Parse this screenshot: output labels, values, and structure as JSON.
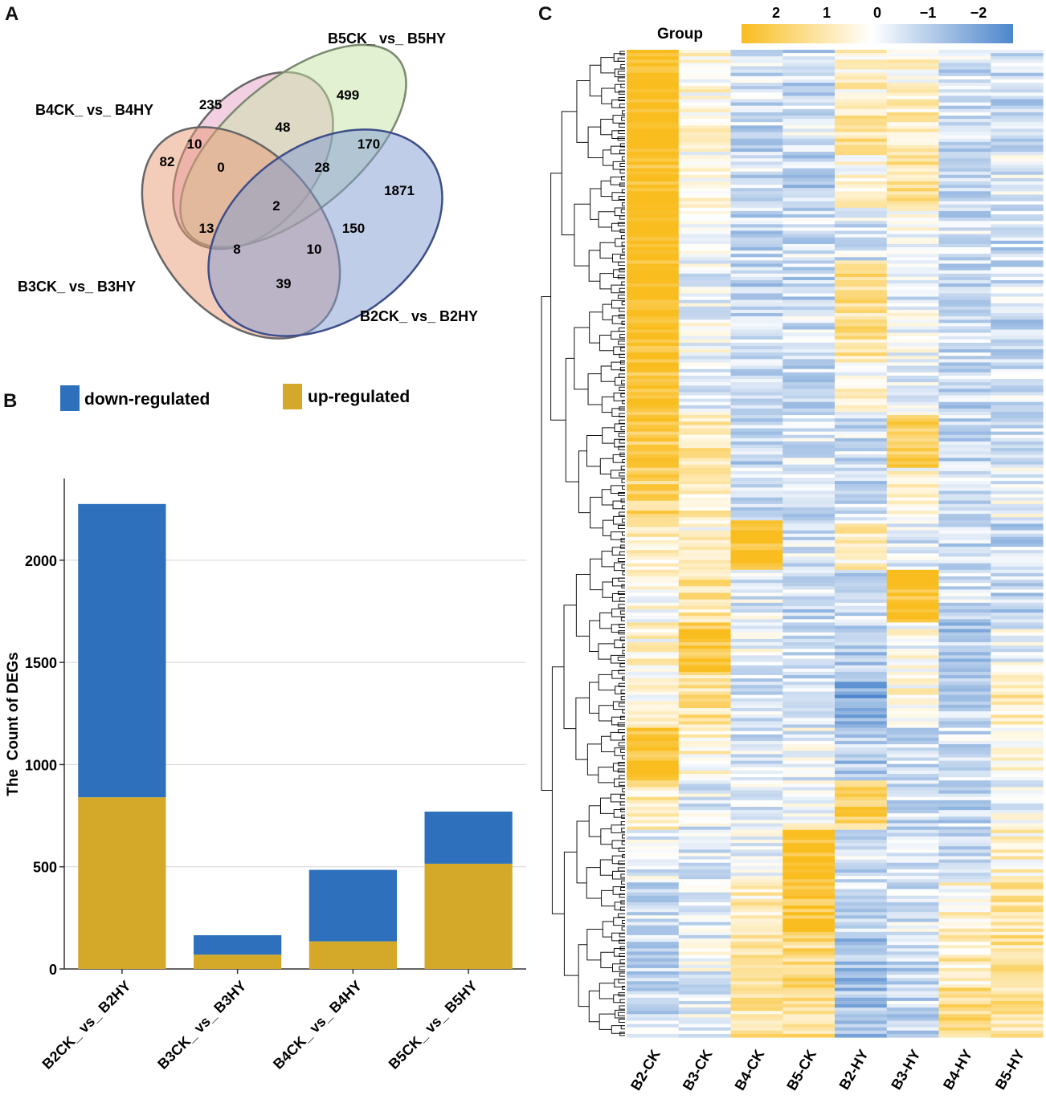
{
  "panels": {
    "a": "A",
    "b": "B",
    "c": "C"
  },
  "venn": {
    "set_labels": {
      "b5": "B5CK_ vs_ B5HY",
      "b4": "B4CK_ vs_ B4HY",
      "b3": "B3CK_ vs_ B3HY",
      "b2": "B2CK_ vs_ B2HY"
    },
    "set_colors": {
      "b4": "#e8a0c6",
      "b5": "#c7e3a7",
      "b3": "#e99a76",
      "b2": "#7f9bd1"
    },
    "regions": [
      {
        "id": "b4_only",
        "value": "235"
      },
      {
        "id": "b5_only",
        "value": "499"
      },
      {
        "id": "b4_b5",
        "value": "48"
      },
      {
        "id": "b3_b4",
        "value": "10"
      },
      {
        "id": "b3_only",
        "value": "82"
      },
      {
        "id": "b3_b4_b5",
        "value": "0"
      },
      {
        "id": "b2_b5",
        "value": "170"
      },
      {
        "id": "b2_b4_b5",
        "value": "28"
      },
      {
        "id": "b2_only",
        "value": "1871"
      },
      {
        "id": "all",
        "value": "2"
      },
      {
        "id": "b3_b4_nob2",
        "value": "13"
      },
      {
        "id": "b2_b4",
        "value": "150"
      },
      {
        "id": "b2_b3_b4",
        "value": "8"
      },
      {
        "id": "b2_b3_b5",
        "value": "10"
      },
      {
        "id": "b2_b3",
        "value": "39"
      }
    ]
  },
  "chart_data": [
    {
      "type": "bar",
      "stacked": true,
      "title": "",
      "xlabel": "",
      "ylabel": "The  Count of DEGs",
      "categories": [
        "B2CK_ vs_ B2HY",
        "B3CK_ vs_ B3HY",
        "B4CK_ vs_ B4HY",
        "B5CK_ vs_ B5HY"
      ],
      "series": [
        {
          "name": "up-regulated",
          "color": "#d4a92a",
          "values": [
            840,
            70,
            135,
            515
          ]
        },
        {
          "name": "down-regulated",
          "color": "#2e70bb",
          "values": [
            1435,
            95,
            350,
            255
          ]
        }
      ],
      "legend": [
        "down-regulated",
        "up-regulated"
      ],
      "yticks": [
        0,
        500,
        1000,
        1500,
        2000
      ],
      "ylim": [
        0,
        2400
      ],
      "grid": true
    },
    {
      "type": "heatmap",
      "title": "",
      "columns": [
        "B2-CK",
        "B3-CK",
        "B4-CK",
        "B5-CK",
        "B2-HY",
        "B3-HY",
        "B4-HY",
        "B5-HY"
      ],
      "color_scale": {
        "label": "Group",
        "ticks": [
          "2",
          "1",
          "0",
          "−1",
          "−2"
        ],
        "high_color": "#f9bd1f",
        "mid_color": "#ffffff",
        "low_color": "#4d86cc"
      },
      "row_blocks": [
        [
          2.2,
          0.3,
          -0.5,
          -0.6,
          0.4,
          0.3,
          -0.5,
          -0.6
        ],
        [
          2.1,
          0.2,
          -0.6,
          -0.4,
          0.8,
          0.6,
          -0.6,
          -0.5
        ],
        [
          2.0,
          0.4,
          -0.5,
          -0.7,
          0.2,
          0.9,
          -0.7,
          -0.4
        ],
        [
          2.2,
          0.1,
          -0.6,
          -0.5,
          -0.4,
          0.1,
          -0.5,
          -0.6
        ],
        [
          2.1,
          -0.2,
          -0.7,
          -0.6,
          1.0,
          -0.3,
          -0.6,
          -0.5
        ],
        [
          2.0,
          -0.1,
          -0.6,
          -0.5,
          0.9,
          -0.2,
          -0.5,
          -0.6
        ],
        [
          1.9,
          -0.3,
          -0.7,
          -0.6,
          0.2,
          -0.2,
          -0.6,
          -0.5
        ],
        [
          1.6,
          0.7,
          -0.6,
          -0.4,
          -0.5,
          1.6,
          -0.7,
          -0.4
        ],
        [
          1.3,
          0.6,
          -0.5,
          -0.6,
          -0.6,
          0.3,
          -0.6,
          -0.2
        ],
        [
          0.6,
          0.3,
          1.9,
          -0.4,
          0.5,
          -0.3,
          -0.7,
          -0.6
        ],
        [
          0.2,
          0.8,
          -0.3,
          -0.6,
          -0.6,
          1.9,
          -0.5,
          -0.7
        ],
        [
          0.3,
          1.8,
          -0.2,
          -0.5,
          -0.8,
          0.0,
          -0.9,
          -0.2
        ],
        [
          0.1,
          0.9,
          -0.4,
          -0.6,
          -1.4,
          0.2,
          -0.8,
          0.6
        ],
        [
          1.9,
          0.3,
          -0.4,
          -0.2,
          -0.8,
          -0.6,
          -0.5,
          0.4
        ],
        [
          0.6,
          -0.3,
          -0.2,
          0.1,
          1.3,
          -0.5,
          -0.6,
          -0.2
        ],
        [
          -0.3,
          -0.4,
          -0.1,
          2.1,
          -0.5,
          -0.3,
          -0.7,
          0.4
        ],
        [
          -0.5,
          -0.3,
          0.5,
          1.8,
          -0.6,
          -0.4,
          0.3,
          0.7
        ],
        [
          -0.6,
          -0.2,
          0.9,
          1.2,
          -1.1,
          -0.7,
          0.6,
          1.0
        ],
        [
          -0.5,
          -0.3,
          0.8,
          1.0,
          -1.0,
          -0.6,
          1.2,
          0.9
        ]
      ]
    }
  ]
}
